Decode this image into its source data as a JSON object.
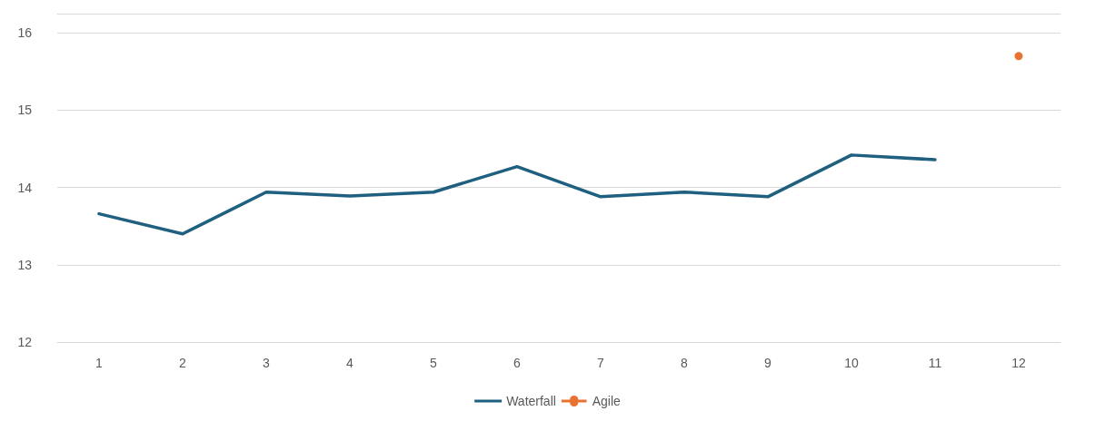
{
  "chart_data": {
    "type": "line",
    "categories": [
      "1",
      "2",
      "3",
      "4",
      "5",
      "6",
      "7",
      "8",
      "9",
      "10",
      "11",
      "12"
    ],
    "series": [
      {
        "name": "Waterfall",
        "color": "#1f5f7f",
        "marker": "none",
        "values": [
          13.66,
          13.4,
          13.94,
          13.89,
          13.94,
          14.27,
          13.88,
          13.94,
          13.88,
          14.42,
          14.36,
          null
        ]
      },
      {
        "name": "Agile",
        "color": "#e97132",
        "marker": "circle",
        "values": [
          null,
          null,
          null,
          null,
          null,
          null,
          null,
          null,
          null,
          null,
          null,
          15.7
        ]
      }
    ],
    "ylim": [
      12,
      16.25
    ],
    "yticks": [
      12,
      13,
      14,
      15,
      16
    ],
    "grid": "y",
    "legend": "bottom",
    "line_style": "solid"
  }
}
